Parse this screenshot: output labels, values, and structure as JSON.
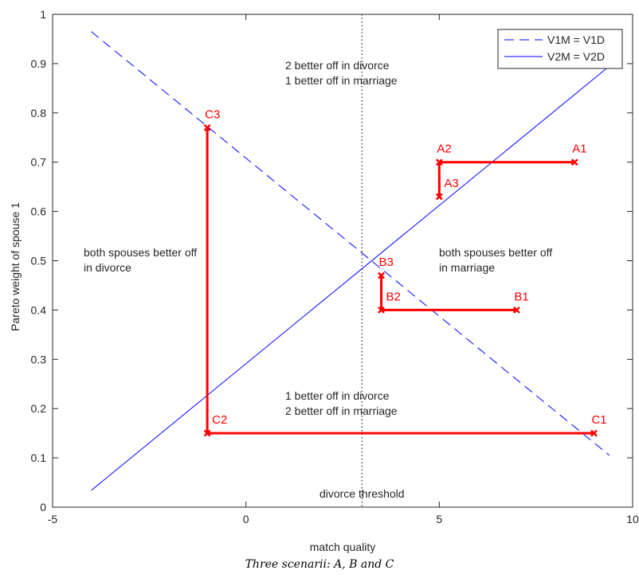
{
  "chart_data": {
    "type": "line",
    "xlabel": "match quality",
    "ylabel": "Pareto weight of spouse 1",
    "caption": "Three scenarii: A, B and C",
    "xlim": [
      -5,
      10
    ],
    "xticks": [
      -5,
      0,
      5,
      10
    ],
    "ylim": [
      0,
      1
    ],
    "yticks": [
      0,
      0.1,
      0.2,
      0.3,
      0.4,
      0.5,
      0.6,
      0.7,
      0.8,
      0.9,
      1
    ],
    "threshold": {
      "x": 3,
      "label": "divorce threshold"
    },
    "legend_position": "upper right",
    "lines": [
      {
        "name": "V1M = V1D",
        "color": "#0000ff",
        "style": "dashed",
        "x": [
          -4,
          9.4
        ],
        "y": [
          0.965,
          0.105
        ]
      },
      {
        "name": "V2M = V2D",
        "color": "#0000ff",
        "style": "solid",
        "x": [
          -4,
          9.4
        ],
        "y": [
          0.034,
          0.895
        ]
      }
    ],
    "scenarios": [
      {
        "color": "#ff0000",
        "labels": [
          "A1",
          "A2",
          "A3"
        ],
        "x": [
          8.5,
          5,
          5
        ],
        "y": [
          0.7,
          0.7,
          0.63
        ]
      },
      {
        "color": "#ff0000",
        "labels": [
          "B1",
          "B2",
          "B3"
        ],
        "x": [
          7,
          3.5,
          3.5
        ],
        "y": [
          0.4,
          0.4,
          0.47
        ]
      },
      {
        "color": "#ff0000",
        "labels": [
          "C1",
          "C2",
          "C3"
        ],
        "x": [
          9,
          -1,
          -1
        ],
        "y": [
          0.15,
          0.15,
          0.77
        ]
      }
    ],
    "annotations": [
      [
        "2 better off in divorce",
        "1 better off in marriage"
      ],
      [
        "both spouses better off",
        "in divorce"
      ],
      [
        "both spouses better off",
        "in marriage"
      ],
      [
        "1 better off in divorce",
        "2 better off in marriage"
      ]
    ]
  }
}
